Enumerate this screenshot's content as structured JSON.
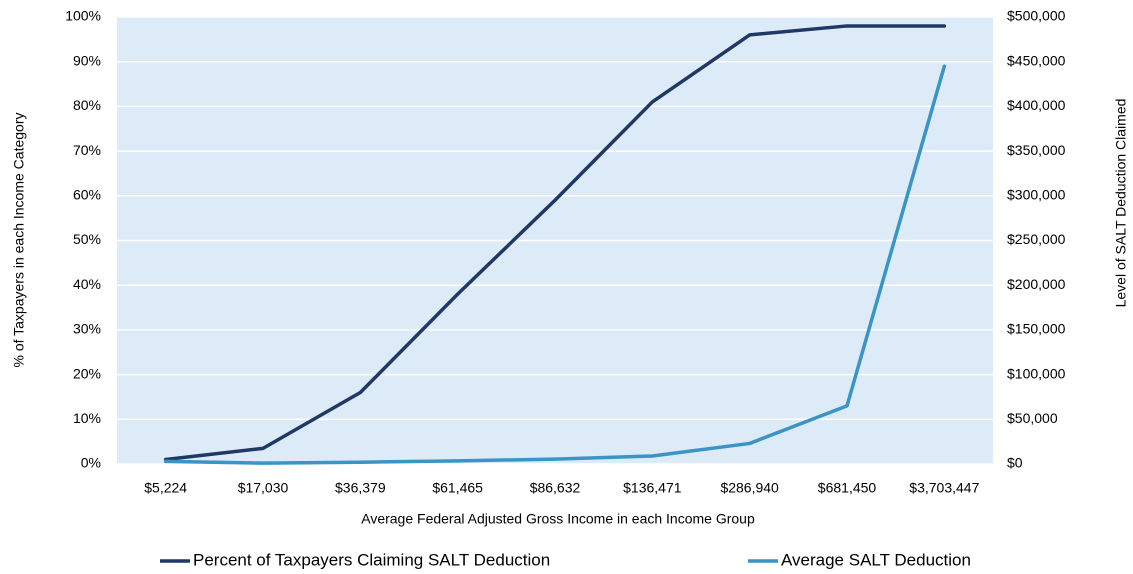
{
  "chart_data": {
    "type": "line",
    "x_label": "Average Federal Adjusted Gross Income in each Income Group",
    "y_label": "% of Taxpayers in each Income Category",
    "y2_label": "Level of SALT Deduction Claimed",
    "categories": [
      "$5,224",
      "$17,030",
      "$36,379",
      "$61,465",
      "$86,632",
      "$136,471",
      "$286,940",
      "$681,450",
      "$3,703,447"
    ],
    "series": [
      {
        "name": "Percent of Taxpayers Claiming SALT Deduction",
        "color": "#1f3864",
        "values": [
          1,
          3.5,
          16,
          38,
          59,
          81,
          96,
          98,
          98
        ]
      },
      {
        "name": "Average SALT Deduction",
        "color": "#3a94c4",
        "axis": "y2",
        "values": [
          3000,
          1000,
          2000,
          3500,
          5500,
          9000,
          23000,
          65000,
          445000
        ]
      }
    ],
    "ylim": [
      0,
      100
    ],
    "yticks": [
      {
        "value": 0,
        "label": "0%"
      },
      {
        "value": 10,
        "label": "10%"
      },
      {
        "value": 20,
        "label": "20%"
      },
      {
        "value": 30,
        "label": "30%"
      },
      {
        "value": 40,
        "label": "40%"
      },
      {
        "value": 50,
        "label": "50%"
      },
      {
        "value": 60,
        "label": "60%"
      },
      {
        "value": 70,
        "label": "70%"
      },
      {
        "value": 80,
        "label": "80%"
      },
      {
        "value": 90,
        "label": "90%"
      },
      {
        "value": 100,
        "label": "100%"
      }
    ],
    "y2lim": [
      0,
      500000
    ],
    "y2ticks": [
      {
        "value": 0,
        "label": "$0"
      },
      {
        "value": 50000,
        "label": "$50,000"
      },
      {
        "value": 100000,
        "label": "$100,000"
      },
      {
        "value": 150000,
        "label": "$150,000"
      },
      {
        "value": 200000,
        "label": "$200,000"
      },
      {
        "value": 250000,
        "label": "$250,000"
      },
      {
        "value": 300000,
        "label": "$300,000"
      },
      {
        "value": 350000,
        "label": "$350,000"
      },
      {
        "value": 400000,
        "label": "$400,000"
      },
      {
        "value": 450000,
        "label": "$450,000"
      },
      {
        "value": 500000,
        "label": "$500,000"
      }
    ],
    "grid": true,
    "legend": "bottom"
  }
}
